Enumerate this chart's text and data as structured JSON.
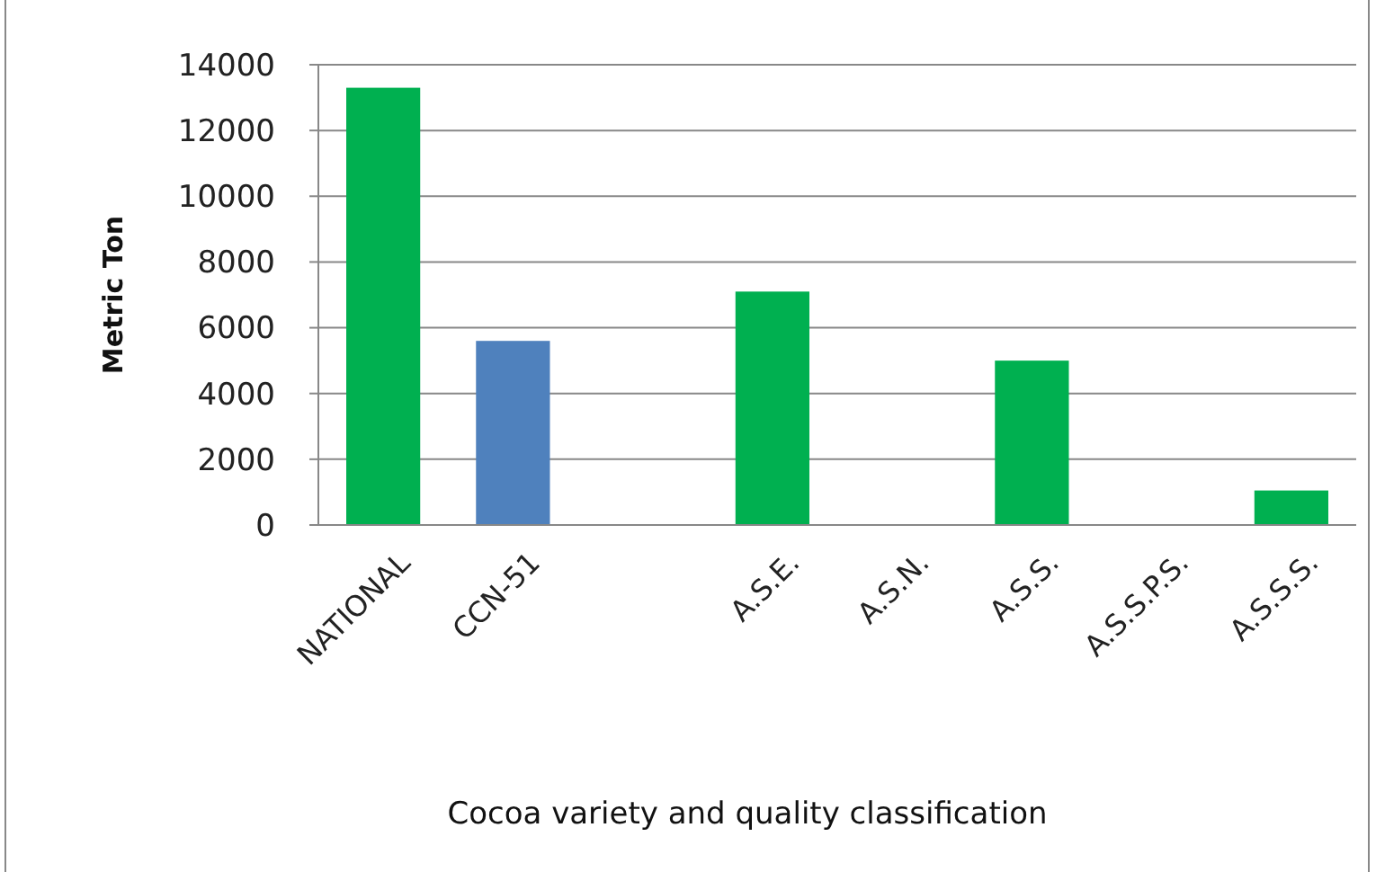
{
  "chart_data": {
    "type": "bar",
    "xlabel": "Cocoa variety and quality classification",
    "ylabel": "Metric Ton",
    "categories": [
      "NATIONAL",
      "CCN-51",
      null,
      "A.S.E.",
      "A.S.N.",
      "A.S.S.",
      "A.S.S.P.S.",
      "A.S.S.S."
    ],
    "values": [
      13300,
      5600,
      null,
      7100,
      0,
      5000,
      0,
      1050
    ],
    "colors": [
      "#00b050",
      "#4f81bd",
      null,
      "#00b050",
      "#00b050",
      "#00b050",
      "#00b050",
      "#00b050"
    ],
    "ylim": [
      0,
      14000
    ],
    "yticks": [
      0,
      2000,
      4000,
      6000,
      8000,
      10000,
      12000,
      14000
    ],
    "grid": "y"
  }
}
